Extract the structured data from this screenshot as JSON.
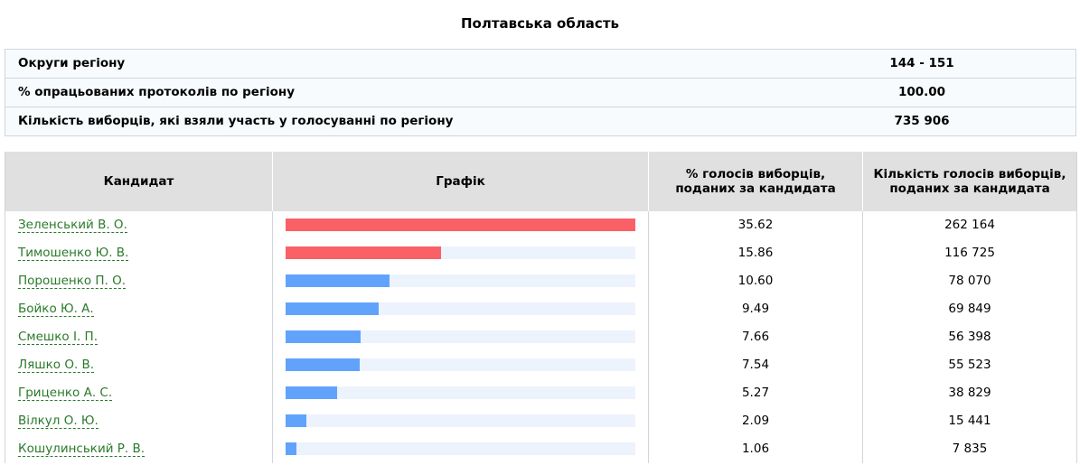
{
  "region": {
    "title": "Полтавська область"
  },
  "info": [
    {
      "label": "Округи регіону",
      "value": "144 - 151"
    },
    {
      "label": "% опрацьованих протоколів по регіону",
      "value": "100.00"
    },
    {
      "label": "Кількість виборців, які взяли участь у голосуванні по регіону",
      "value": "735 906"
    }
  ],
  "table": {
    "headers": {
      "candidate": "Кандидат",
      "chart": "Графік",
      "percent": "% голосів виборців, поданих за кандидата",
      "votes": "Кількість голосів виборців, поданих за кандидата"
    },
    "colors": {
      "leader": "#fa6166",
      "other": "#61a3fa",
      "track": "#edf3fc"
    },
    "rows": [
      {
        "name": "Зеленський В. О.",
        "percent": "35.62",
        "votes": "262 164",
        "fill": 1.0,
        "color": "leader"
      },
      {
        "name": "Тимошенко Ю. В.",
        "percent": "15.86",
        "votes": "116 725",
        "fill": 0.445,
        "color": "leader"
      },
      {
        "name": "Порошенко П. О.",
        "percent": "10.60",
        "votes": "78 070",
        "fill": 0.298,
        "color": "other"
      },
      {
        "name": "Бойко Ю. А.",
        "percent": "9.49",
        "votes": "69 849",
        "fill": 0.266,
        "color": "other"
      },
      {
        "name": "Смешко І. П.",
        "percent": "7.66",
        "votes": "56 398",
        "fill": 0.215,
        "color": "other"
      },
      {
        "name": "Ляшко О. В.",
        "percent": "7.54",
        "votes": "55 523",
        "fill": 0.212,
        "color": "other"
      },
      {
        "name": "Гриценко А. С.",
        "percent": "5.27",
        "votes": "38 829",
        "fill": 0.148,
        "color": "other"
      },
      {
        "name": "Вілкул О. Ю.",
        "percent": "2.09",
        "votes": "15 441",
        "fill": 0.059,
        "color": "other"
      },
      {
        "name": "Кошулинський Р. В.",
        "percent": "1.06",
        "votes": "7 835",
        "fill": 0.03,
        "color": "other"
      }
    ]
  }
}
